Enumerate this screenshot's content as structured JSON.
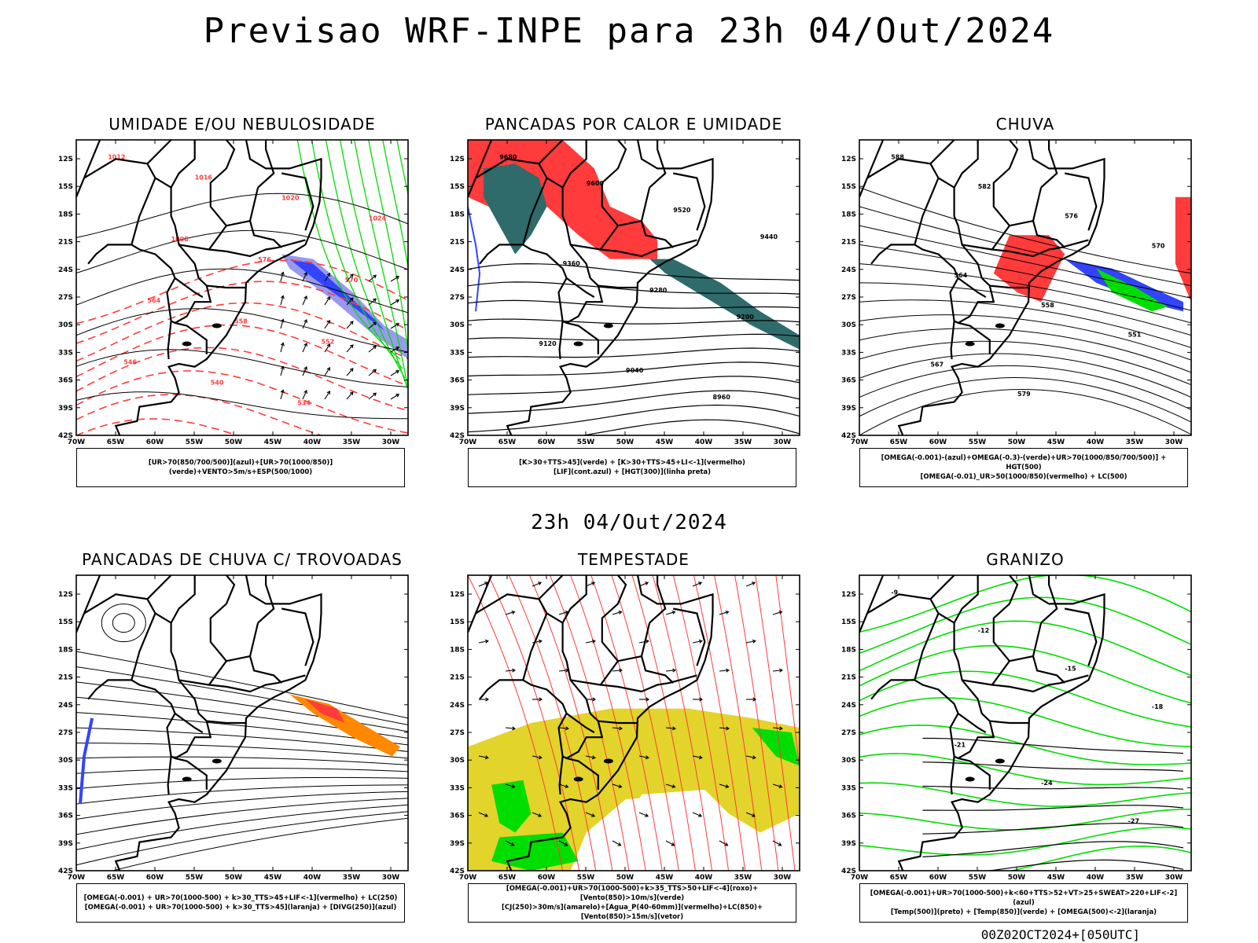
{
  "title": "Previsao WRF-INPE  para 23h 04/Out/2024",
  "subtitle": "23h 04/Out/2024",
  "footer": "00Z02OCT2024+[050UTC]",
  "colors": {
    "frame": "#000000",
    "red": "#ff3b3b",
    "green": "#00dd00",
    "blue": "#3344ff",
    "lavender": "#9999ee",
    "teal": "#2f6b6b",
    "yellow": "#e2d42a",
    "orange": "#ff8800"
  },
  "axes": {
    "lat_ticks": [
      "12S",
      "15S",
      "18S",
      "21S",
      "24S",
      "27S",
      "30S",
      "33S",
      "36S",
      "39S",
      "42S"
    ],
    "lon_ticks": [
      "70W",
      "65W",
      "60W",
      "55W",
      "50W",
      "45W",
      "40W",
      "35W",
      "30W"
    ]
  },
  "panels": [
    {
      "title": "UMIDADE E/OU NEBULOSIDADE",
      "legend": [
        "[UR>70(850/700/500)](azul)+[UR>70(1000/850)](verde)+VENTO>5m/s+ESP(500/1000)"
      ],
      "labels": [
        "1012",
        "1016",
        "1020",
        "1024",
        "1008",
        "576",
        "570",
        "564",
        "558",
        "552",
        "546",
        "540",
        "534"
      ]
    },
    {
      "title": "PANCADAS POR CALOR E UMIDADE",
      "legend": [
        "[K>30+TTS>45](verde)  +  [K>30+TTS>45+LI<-1](vermelho)",
        "[LIF](cont.azul)  +  [HGT(300)](linha preta)"
      ],
      "labels": [
        "9680",
        "9600",
        "9520",
        "9440",
        "9360",
        "9280",
        "9200",
        "9120",
        "9040",
        "8960"
      ]
    },
    {
      "title": "CHUVA",
      "legend": [
        "[OMEGA(-0.001)-(azul)+OMEGA(-0.3)-(verde)+UR>70(1000/850/700/500)]  +  HGT(500)",
        "[OMEGA(-0.01)_UR>50(1000/850)(vermelho)  +  LC(500)"
      ],
      "labels": [
        "588",
        "582",
        "576",
        "570",
        "564",
        "558",
        "551",
        "567",
        "579"
      ]
    },
    {
      "title": "PANCADAS DE CHUVA C/ TROVOADAS",
      "legend": [
        "[OMEGA(-0.001)  +  UR>70(1000-500)  +  k>30_TTS>45+LIF<-1](vermelho)  +  LC(250)",
        "[OMEGA(-0.001)  +  UR>70(1000-500)  +  k>30_TTS>45](laranja)  +  [DIVG(250)](azul)"
      ],
      "labels": []
    },
    {
      "title": "TEMPESTADE",
      "legend": [
        "[OMEGA(-0.001)+UR>70(1000-500)+k>35_TTS>50+LIF<-4](roxo)+[Vento(850)>10m/s](verde)",
        "[CJ(250)>30m/s](amarelo)+[Agua_P(40-60mm)](vermelho)+LC(850)+[Vento(850)>15m/s](vetor)"
      ],
      "labels": []
    },
    {
      "title": "GRANIZO",
      "legend": [
        "[OMEGA(-0.001)+UR>70(1000-500)+k<60+TTS>52+VT>25+SWEAT>220+LIF<-2](azul)",
        "[Temp(500)](preto)  +  [Temp(850)](verde)  +  [OMEGA(500)<-2](laranja)"
      ],
      "labels": [
        "-9",
        "-12",
        "-15",
        "-18",
        "-21",
        "-24",
        "-27"
      ]
    }
  ]
}
